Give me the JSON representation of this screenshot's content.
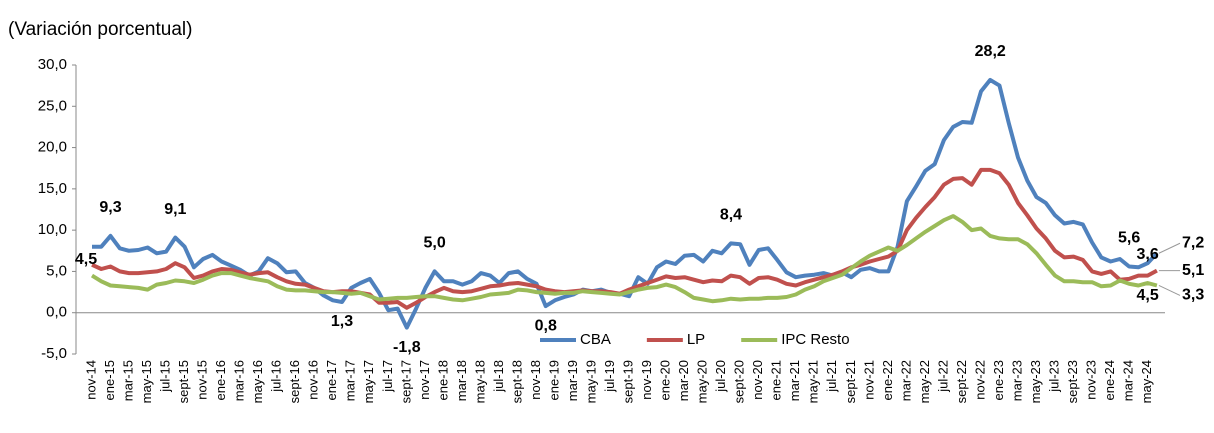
{
  "chart_data": {
    "type": "line",
    "subtitle": "(Variación porcentual)",
    "categories": [
      "nov-14",
      null,
      "ene-15",
      null,
      "mar-15",
      null,
      "may-15",
      null,
      "jul-15",
      null,
      "sept-15",
      null,
      "nov-15",
      null,
      "ene-16",
      null,
      "mar-16",
      null,
      "may-16",
      null,
      "jul-16",
      null,
      "sept-16",
      null,
      "nov-16",
      null,
      "ene-17",
      null,
      "mar-17",
      null,
      "may-17",
      null,
      "jul-17",
      null,
      "sept-17",
      null,
      "nov-17",
      null,
      "ene-18",
      null,
      "mar-18",
      null,
      "may-18",
      null,
      "jul-18",
      null,
      "sept-18",
      null,
      "nov-18",
      null,
      "ene-19",
      null,
      "mar-19",
      null,
      "may-19",
      null,
      "jul-19",
      null,
      "sept-19",
      null,
      "nov-19",
      null,
      "ene-20",
      null,
      "mar-20",
      null,
      "may-20",
      null,
      "jul-20",
      null,
      "sept-20",
      null,
      "nov-20",
      null,
      "ene-21",
      null,
      "mar-21",
      null,
      "may-21",
      null,
      "jul-21",
      null,
      "sept-21",
      null,
      "nov-21",
      null,
      "ene-22",
      null,
      "mar-22",
      null,
      "may-22",
      null,
      "jul-22",
      null,
      "sept-22",
      null,
      "nov-22",
      null,
      "ene-23",
      null,
      "mar-23",
      null,
      "may-23",
      null,
      "jul-23",
      null,
      "sept-23",
      null,
      "nov-23",
      null,
      "ene-24",
      null,
      "mar-24",
      null,
      "may-24",
      null
    ],
    "series": [
      {
        "name": "CBA",
        "color": "#4f81bd",
        "values": [
          8.0,
          8.0,
          9.3,
          7.8,
          7.5,
          7.6,
          7.9,
          7.2,
          7.4,
          9.1,
          8.0,
          5.5,
          6.5,
          7.0,
          6.2,
          5.7,
          5.2,
          4.5,
          5.0,
          6.6,
          6.0,
          4.9,
          5.0,
          3.6,
          3.0,
          2.1,
          1.5,
          1.3,
          3.0,
          3.6,
          4.1,
          2.4,
          0.3,
          0.5,
          -1.8,
          0.5,
          3.0,
          5.0,
          3.8,
          3.8,
          3.4,
          3.8,
          4.8,
          4.5,
          3.6,
          4.8,
          5.0,
          4.1,
          3.5,
          0.8,
          1.5,
          1.9,
          2.2,
          2.8,
          2.6,
          2.8,
          2.4,
          2.3,
          2.0,
          4.3,
          3.5,
          5.5,
          6.2,
          5.9,
          6.9,
          7.0,
          6.2,
          7.5,
          7.2,
          8.4,
          8.3,
          5.8,
          7.6,
          7.8,
          6.4,
          4.9,
          4.3,
          4.5,
          4.6,
          4.8,
          4.5,
          4.9,
          4.3,
          5.2,
          5.4,
          5.0,
          5.0,
          8.0,
          13.5,
          15.3,
          17.2,
          18.0,
          20.9,
          22.5,
          23.1,
          23.0,
          26.8,
          28.2,
          27.5,
          23.0,
          18.8,
          16.0,
          14.0,
          13.3,
          11.8,
          10.8,
          11.0,
          10.7,
          8.5,
          6.7,
          6.2,
          6.5,
          5.6,
          5.5,
          6.0,
          7.2
        ],
        "value_labels": {
          "2": "9,3",
          "9": "9,1",
          "27": "1,3",
          "34": "-1,8",
          "37": "5,0",
          "49": "0,8",
          "69": "8,4",
          "97": "28,2",
          "112": "5,6",
          "115": "7,2"
        }
      },
      {
        "name": "LP",
        "color": "#c0504d",
        "values": [
          5.8,
          5.3,
          5.6,
          5.0,
          4.8,
          4.8,
          4.9,
          5.0,
          5.3,
          6.0,
          5.5,
          4.2,
          4.5,
          5.0,
          5.3,
          5.2,
          4.9,
          4.6,
          4.8,
          4.9,
          4.3,
          3.8,
          3.5,
          3.4,
          3.0,
          2.6,
          2.5,
          2.6,
          2.6,
          2.4,
          2.2,
          1.2,
          1.2,
          1.3,
          0.6,
          1.2,
          1.9,
          2.5,
          3.0,
          2.6,
          2.5,
          2.6,
          2.9,
          3.2,
          3.3,
          3.5,
          3.6,
          3.4,
          3.2,
          2.8,
          2.6,
          2.5,
          2.6,
          2.7,
          2.6,
          2.6,
          2.5,
          2.3,
          2.8,
          3.2,
          3.6,
          4.0,
          4.4,
          4.2,
          4.3,
          4.0,
          3.7,
          3.9,
          3.8,
          4.5,
          4.3,
          3.5,
          4.2,
          4.3,
          4.0,
          3.5,
          3.3,
          3.7,
          4.0,
          4.3,
          4.6,
          5.0,
          5.5,
          5.8,
          6.2,
          6.5,
          6.8,
          7.5,
          10.0,
          11.5,
          12.8,
          14.0,
          15.5,
          16.2,
          16.3,
          15.5,
          17.3,
          17.3,
          16.9,
          15.5,
          13.3,
          11.8,
          10.2,
          9.0,
          7.5,
          6.7,
          6.8,
          6.4,
          5.0,
          4.7,
          5.0,
          4.0,
          4.1,
          4.5,
          4.5,
          5.1
        ],
        "value_labels": {
          "114": "4,5",
          "115": "5,1"
        }
      },
      {
        "name": "IPC Resto",
        "color": "#9bbb59",
        "values": [
          4.5,
          3.8,
          3.3,
          3.2,
          3.1,
          3.0,
          2.8,
          3.4,
          3.6,
          3.9,
          3.8,
          3.6,
          4.0,
          4.5,
          4.8,
          4.8,
          4.5,
          4.2,
          4.0,
          3.8,
          3.2,
          2.8,
          2.7,
          2.7,
          2.6,
          2.5,
          2.5,
          2.4,
          2.3,
          2.4,
          2.0,
          1.6,
          1.7,
          1.8,
          1.8,
          1.9,
          2.0,
          2.0,
          1.8,
          1.6,
          1.5,
          1.7,
          1.9,
          2.2,
          2.3,
          2.4,
          2.8,
          2.7,
          2.5,
          2.4,
          2.3,
          2.4,
          2.4,
          2.6,
          2.5,
          2.4,
          2.3,
          2.2,
          2.5,
          2.8,
          3.0,
          3.1,
          3.4,
          3.1,
          2.5,
          1.8,
          1.6,
          1.4,
          1.5,
          1.7,
          1.6,
          1.7,
          1.7,
          1.8,
          1.8,
          1.9,
          2.2,
          2.8,
          3.2,
          3.8,
          4.2,
          4.6,
          5.4,
          6.2,
          6.9,
          7.4,
          7.9,
          7.5,
          8.2,
          9.0,
          9.8,
          10.5,
          11.2,
          11.7,
          11.0,
          10.0,
          10.2,
          9.3,
          9.0,
          8.9,
          8.9,
          8.3,
          7.2,
          5.8,
          4.5,
          3.8,
          3.8,
          3.7,
          3.7,
          3.2,
          3.3,
          3.9,
          3.5,
          3.3,
          3.6,
          3.3
        ],
        "value_labels": {
          "0": "4,5",
          "114": "3,6",
          "115": "3,3"
        }
      }
    ],
    "ylim": [
      -5,
      30
    ],
    "yticks": [
      {
        "value": -5,
        "label": "-5,0"
      },
      {
        "value": 0,
        "label": "0,0"
      },
      {
        "value": 5,
        "label": "5,0"
      },
      {
        "value": 10,
        "label": "10,0"
      },
      {
        "value": 15,
        "label": "15,0"
      },
      {
        "value": 20,
        "label": "20,0"
      },
      {
        "value": 25,
        "label": "25,0"
      },
      {
        "value": 30,
        "label": "30,0"
      }
    ],
    "grid": false,
    "legend": "bottom"
  }
}
